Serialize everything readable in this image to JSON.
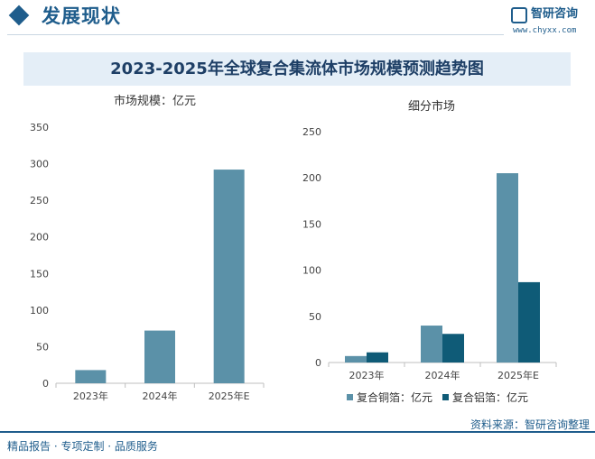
{
  "header": {
    "title": "发展现状",
    "logo_name": "智研咨询",
    "logo_url": "www.chyxx.com"
  },
  "banner_title": "2023-2025年全球复合集流体市场规模预测趋势图",
  "colors": {
    "brand": "#1f5d8c",
    "bar_light": "#5b91a8",
    "bar_dark": "#0f5b77",
    "banner_bg": "#e4eef7"
  },
  "chart_data": [
    {
      "type": "bar",
      "unit_label": "市场规模：亿元",
      "categories": [
        "2023年",
        "2024年",
        "2025年E"
      ],
      "values": [
        18,
        72,
        292
      ],
      "ylim": [
        0,
        350
      ],
      "yticks": [
        "0",
        "50",
        "100",
        "150",
        "200",
        "250",
        "300",
        "350"
      ],
      "legend": "none",
      "grid": false
    },
    {
      "type": "bar",
      "unit_label": "细分市场",
      "categories": [
        "2023年",
        "2024年",
        "2025年E"
      ],
      "series": [
        {
          "name": "复合铜箔：亿元",
          "values": [
            7,
            40,
            205
          ]
        },
        {
          "name": "复合铝箔：亿元",
          "values": [
            11,
            31,
            87
          ]
        }
      ],
      "ylim": [
        0,
        250
      ],
      "yticks": [
        "0",
        "50",
        "100",
        "150",
        "200",
        "250"
      ],
      "legend": "bottom",
      "grid": false
    }
  ],
  "footer": {
    "left": "精品报告 · 专项定制 · 品质服务",
    "right": "资料来源：智研咨询整理"
  }
}
